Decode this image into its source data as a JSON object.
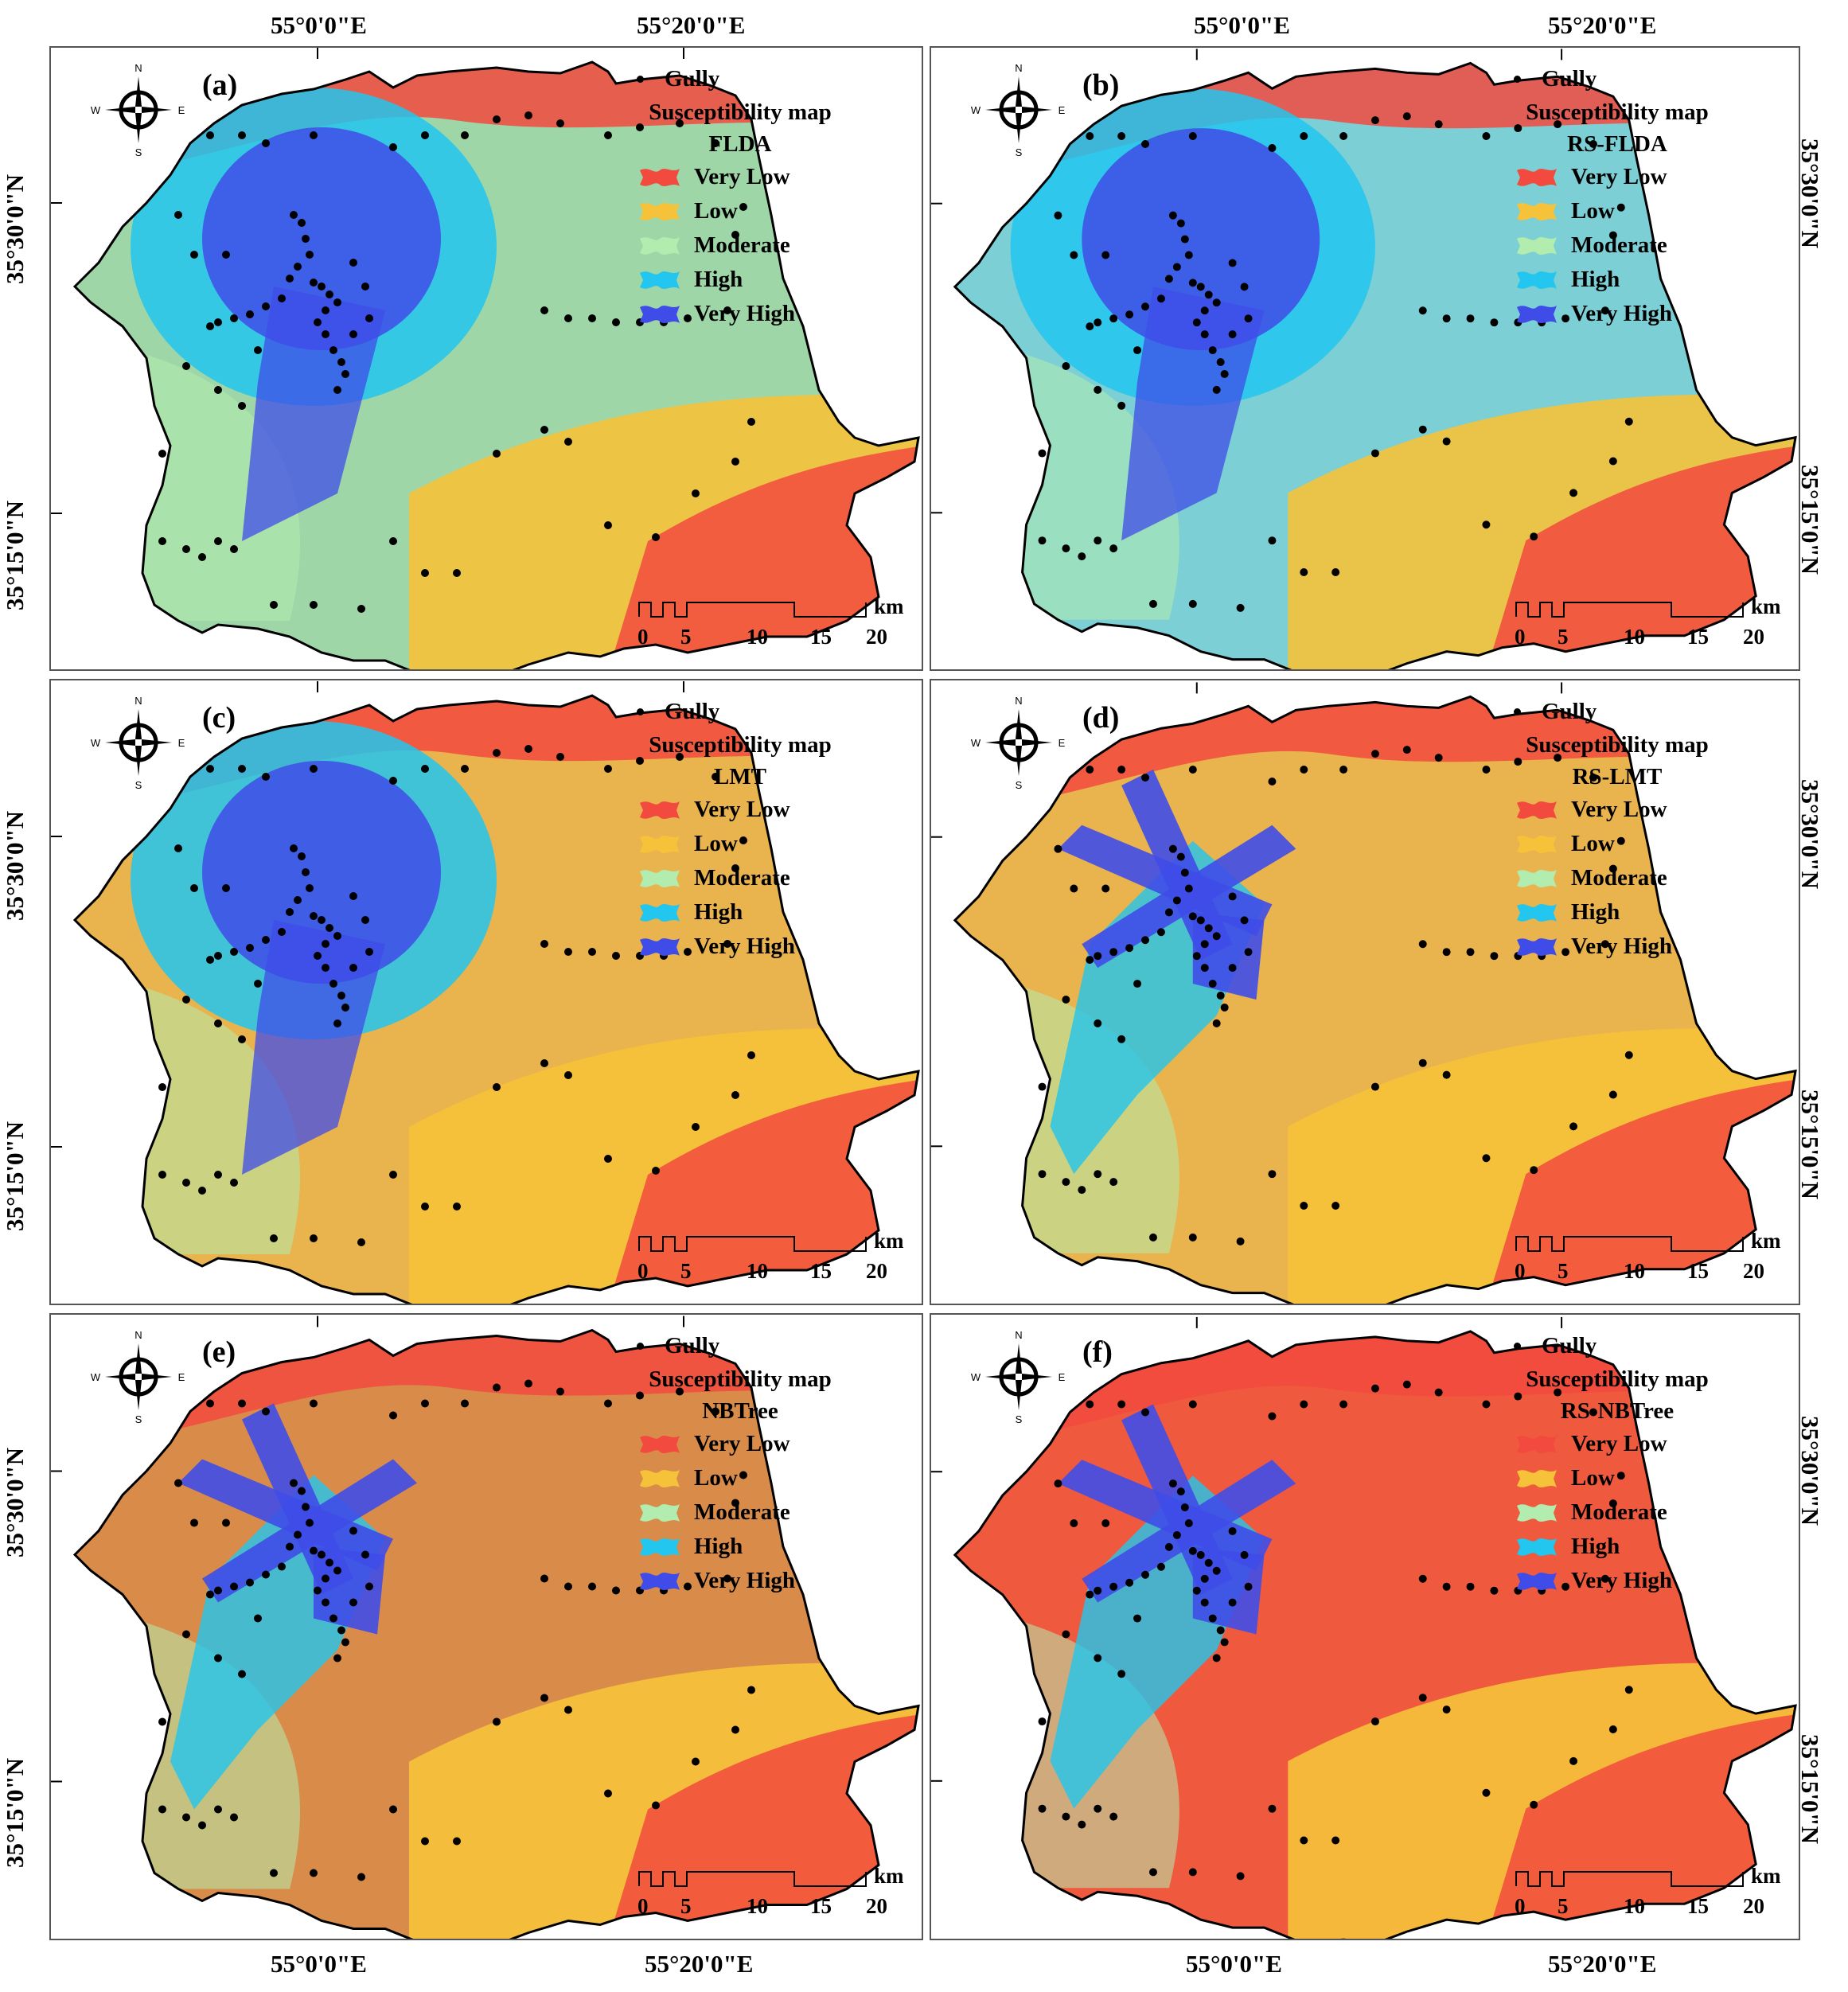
{
  "axes": {
    "lon_labels": [
      "55°0'0\"E",
      "55°20'0\"E"
    ],
    "lat_labels": [
      "35°30'0\"N",
      "35°15'0\"N"
    ]
  },
  "legend": {
    "gully_label": "Gully",
    "title": "Susceptibility map",
    "classes": [
      {
        "label": "Very Low",
        "color": "#f24a3e"
      },
      {
        "label": "Low",
        "color": "#f6c23a"
      },
      {
        "label": "Moderate",
        "color": "#b2ecae"
      },
      {
        "label": "High",
        "color": "#22c6ee"
      },
      {
        "label": "Very High",
        "color": "#3f4ce8"
      }
    ]
  },
  "compass": {
    "n": "N",
    "s": "S",
    "e": "E",
    "w": "W"
  },
  "scalebar": {
    "unit": "km",
    "ticks": [
      "0",
      "5",
      "10",
      "15",
      "20"
    ]
  },
  "panels": [
    {
      "letter": "(a)",
      "model": "FLDA",
      "high_zone": "fan",
      "base": "#9fd6a8"
    },
    {
      "letter": "(b)",
      "model": "RS-FLDA",
      "high_zone": "fan",
      "base": "#7ccfd4"
    },
    {
      "letter": "(c)",
      "model": "LMT",
      "high_zone": "fan",
      "base": "#e9b34e"
    },
    {
      "letter": "(d)",
      "model": "RS-LMT",
      "high_zone": "cross",
      "base": "#e9b34e"
    },
    {
      "letter": "(e)",
      "model": "NBTree",
      "high_zone": "cross",
      "base": "#d98c4a"
    },
    {
      "letter": "(f)",
      "model": "RS-NBTree",
      "high_zone": "cross",
      "base": "#ef5a3e"
    }
  ]
}
